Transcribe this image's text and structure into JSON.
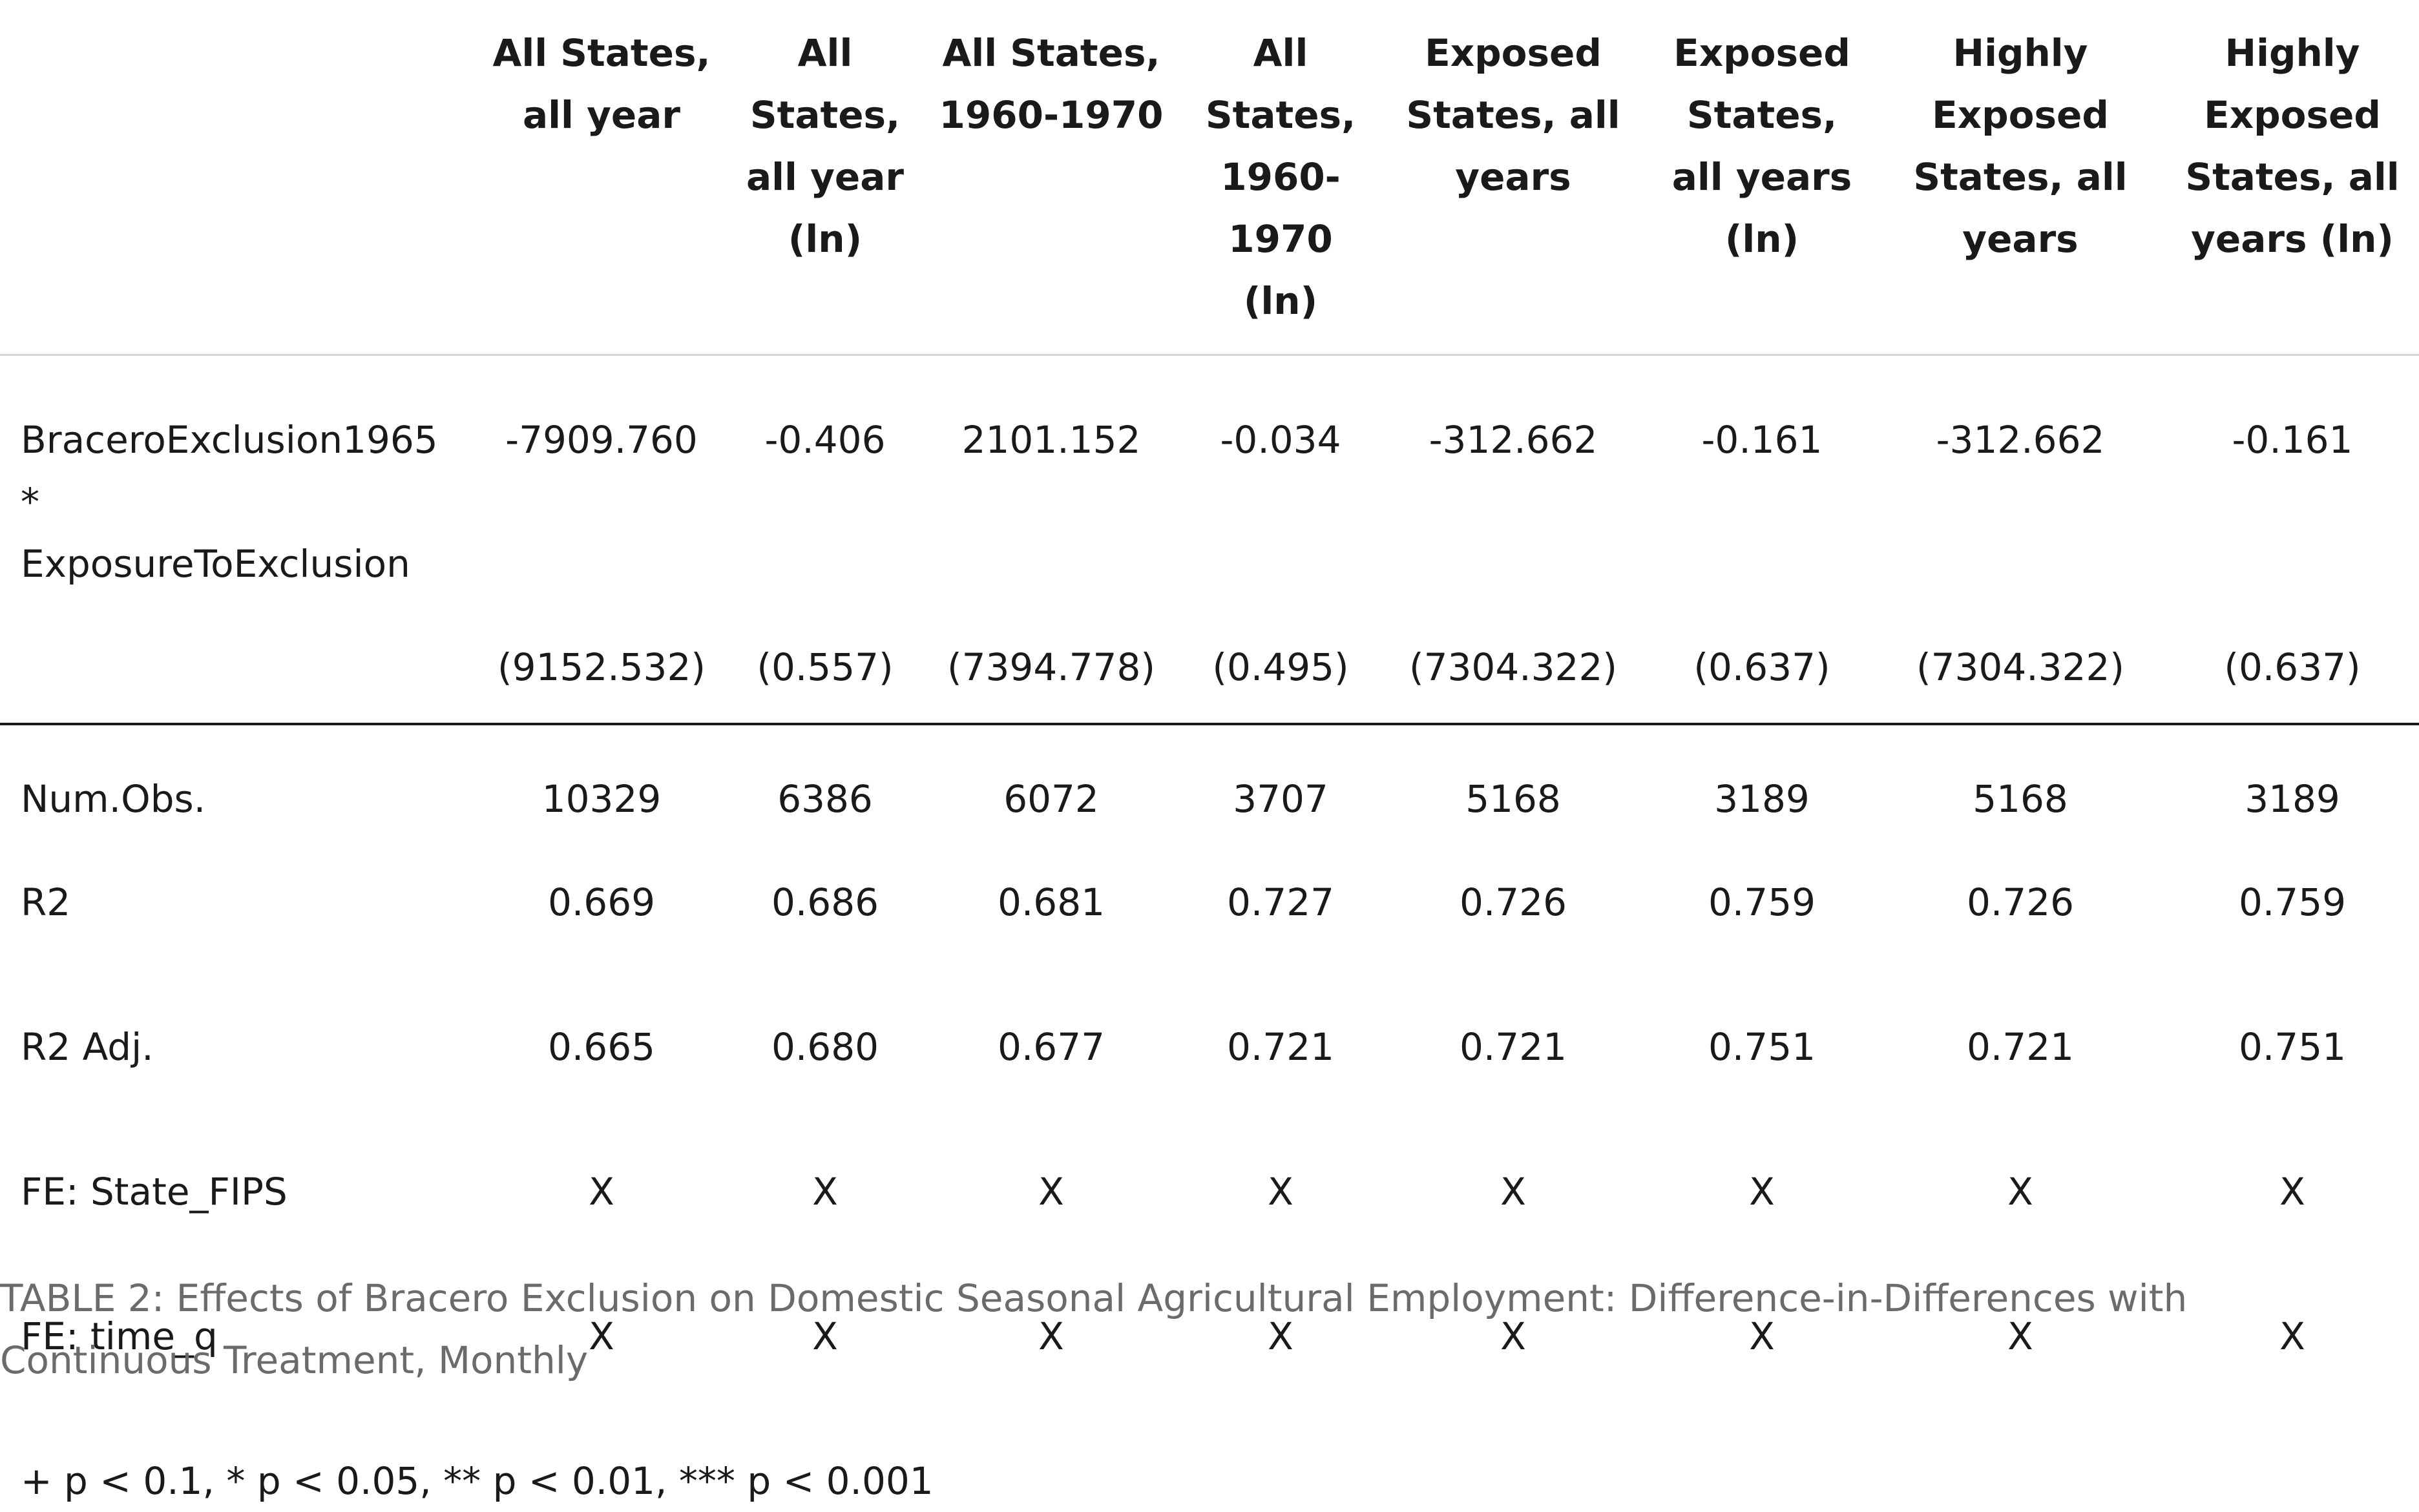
{
  "table": {
    "columns": [
      "All States, all year",
      "All States, all year (ln)",
      "All States, 1960-1970",
      "All States, 1960-1970 (ln)",
      "Exposed States, all years",
      "Exposed States, all years (ln)",
      "Highly Exposed States, all years",
      "Highly Exposed States, all years (ln)"
    ],
    "coefficient": {
      "label_line1": "BraceroExclusion1965 *",
      "label_line2": "ExposureToExclusion",
      "estimates": [
        "-7909.760",
        "-0.406",
        "2101.152",
        "-0.034",
        "-312.662",
        "-0.161",
        "-312.662",
        "-0.161"
      ],
      "std_errors": [
        "(9152.532)",
        "(0.557)",
        "(7394.778)",
        "(0.495)",
        "(7304.322)",
        "(0.637)",
        "(7304.322)",
        "(0.637)"
      ]
    },
    "stats": [
      {
        "label": "Num.Obs.",
        "values": [
          "10329",
          "6386",
          "6072",
          "3707",
          "5168",
          "3189",
          "5168",
          "3189"
        ]
      },
      {
        "label": "R2",
        "values": [
          "0.669",
          "0.686",
          "0.681",
          "0.727",
          "0.726",
          "0.759",
          "0.726",
          "0.759"
        ]
      },
      {
        "label": "R2 Adj.",
        "values": [
          "0.665",
          "0.680",
          "0.677",
          "0.721",
          "0.721",
          "0.751",
          "0.721",
          "0.751"
        ]
      },
      {
        "label": "FE: State_FIPS",
        "values": [
          "X",
          "X",
          "X",
          "X",
          "X",
          "X",
          "X",
          "X"
        ]
      },
      {
        "label": "FE: time_q",
        "values": [
          "X",
          "X",
          "X",
          "X",
          "X",
          "X",
          "X",
          "X"
        ]
      }
    ],
    "note": "+ p < 0.1, * p < 0.05, ** p < 0.01, *** p < 0.001"
  },
  "caption": "TABLE 2: Effects of Bracero Exclusion on Domestic Seasonal Agricultural Employment: Difference-in-Differences with Continuous Treatment, Monthly"
}
